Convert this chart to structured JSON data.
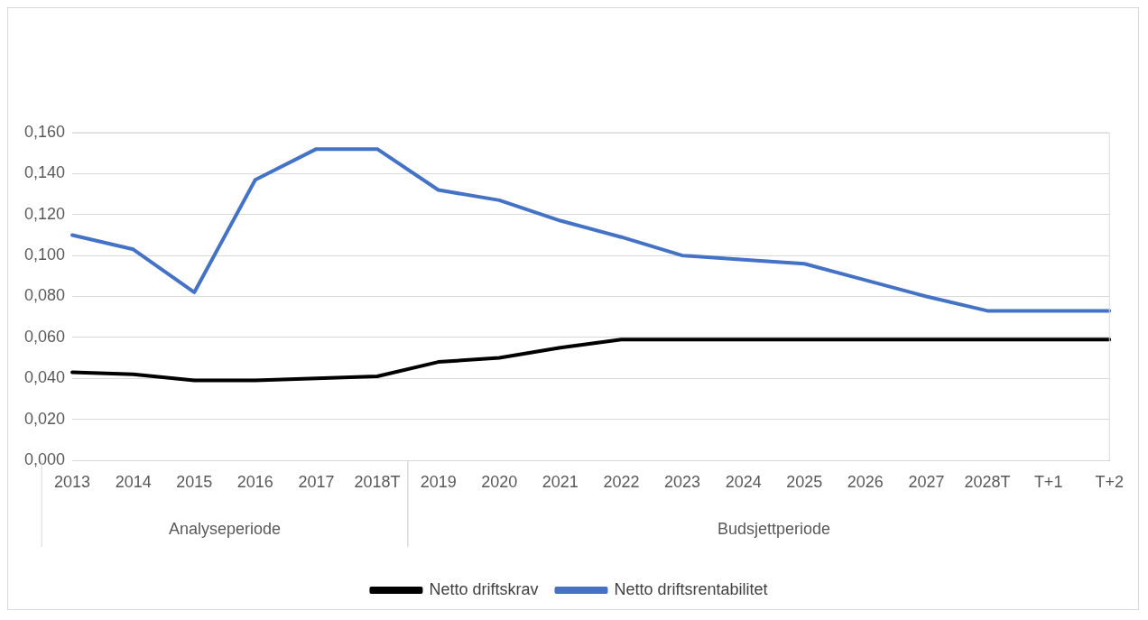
{
  "chart_data": {
    "type": "line",
    "categories": [
      "2013",
      "2014",
      "2015",
      "2016",
      "2017",
      "2018T",
      "2019",
      "2020",
      "2021",
      "2022",
      "2023",
      "2024",
      "2025",
      "2026",
      "2027",
      "2028T",
      "T+1",
      "T+2"
    ],
    "series": [
      {
        "name": "Netto driftskrav",
        "color": "#000000",
        "values": [
          0.043,
          0.042,
          0.039,
          0.039,
          0.04,
          0.041,
          0.048,
          0.05,
          0.055,
          0.059,
          0.059,
          0.059,
          0.059,
          0.059,
          0.059,
          0.059,
          0.059,
          0.059
        ]
      },
      {
        "name": "Netto driftsrentabilitet",
        "color": "#4472c4",
        "values": [
          0.11,
          0.103,
          0.082,
          0.137,
          0.152,
          0.152,
          0.132,
          0.127,
          0.117,
          0.109,
          0.1,
          0.098,
          0.096,
          0.088,
          0.08,
          0.073,
          0.073,
          0.073
        ]
      }
    ],
    "annotations": [
      "Analyseperiode",
      "Budsjettperiode"
    ],
    "ylim": [
      0,
      0.16
    ],
    "yticks": [
      {
        "value": 0,
        "label": "0,000"
      },
      {
        "value": 0.02,
        "label": "0,020"
      },
      {
        "value": 0.04,
        "label": "0,040"
      },
      {
        "value": 0.06,
        "label": "0,060"
      },
      {
        "value": 0.08,
        "label": "0,080"
      },
      {
        "value": 0.1,
        "label": "0,100"
      },
      {
        "value": 0.12,
        "label": "0,120"
      },
      {
        "value": 0.14,
        "label": "0,140"
      },
      {
        "value": 0.16,
        "label": "0,160"
      }
    ],
    "grid": "y",
    "legend": "bottom",
    "marker": "none",
    "line_style": "solid"
  }
}
